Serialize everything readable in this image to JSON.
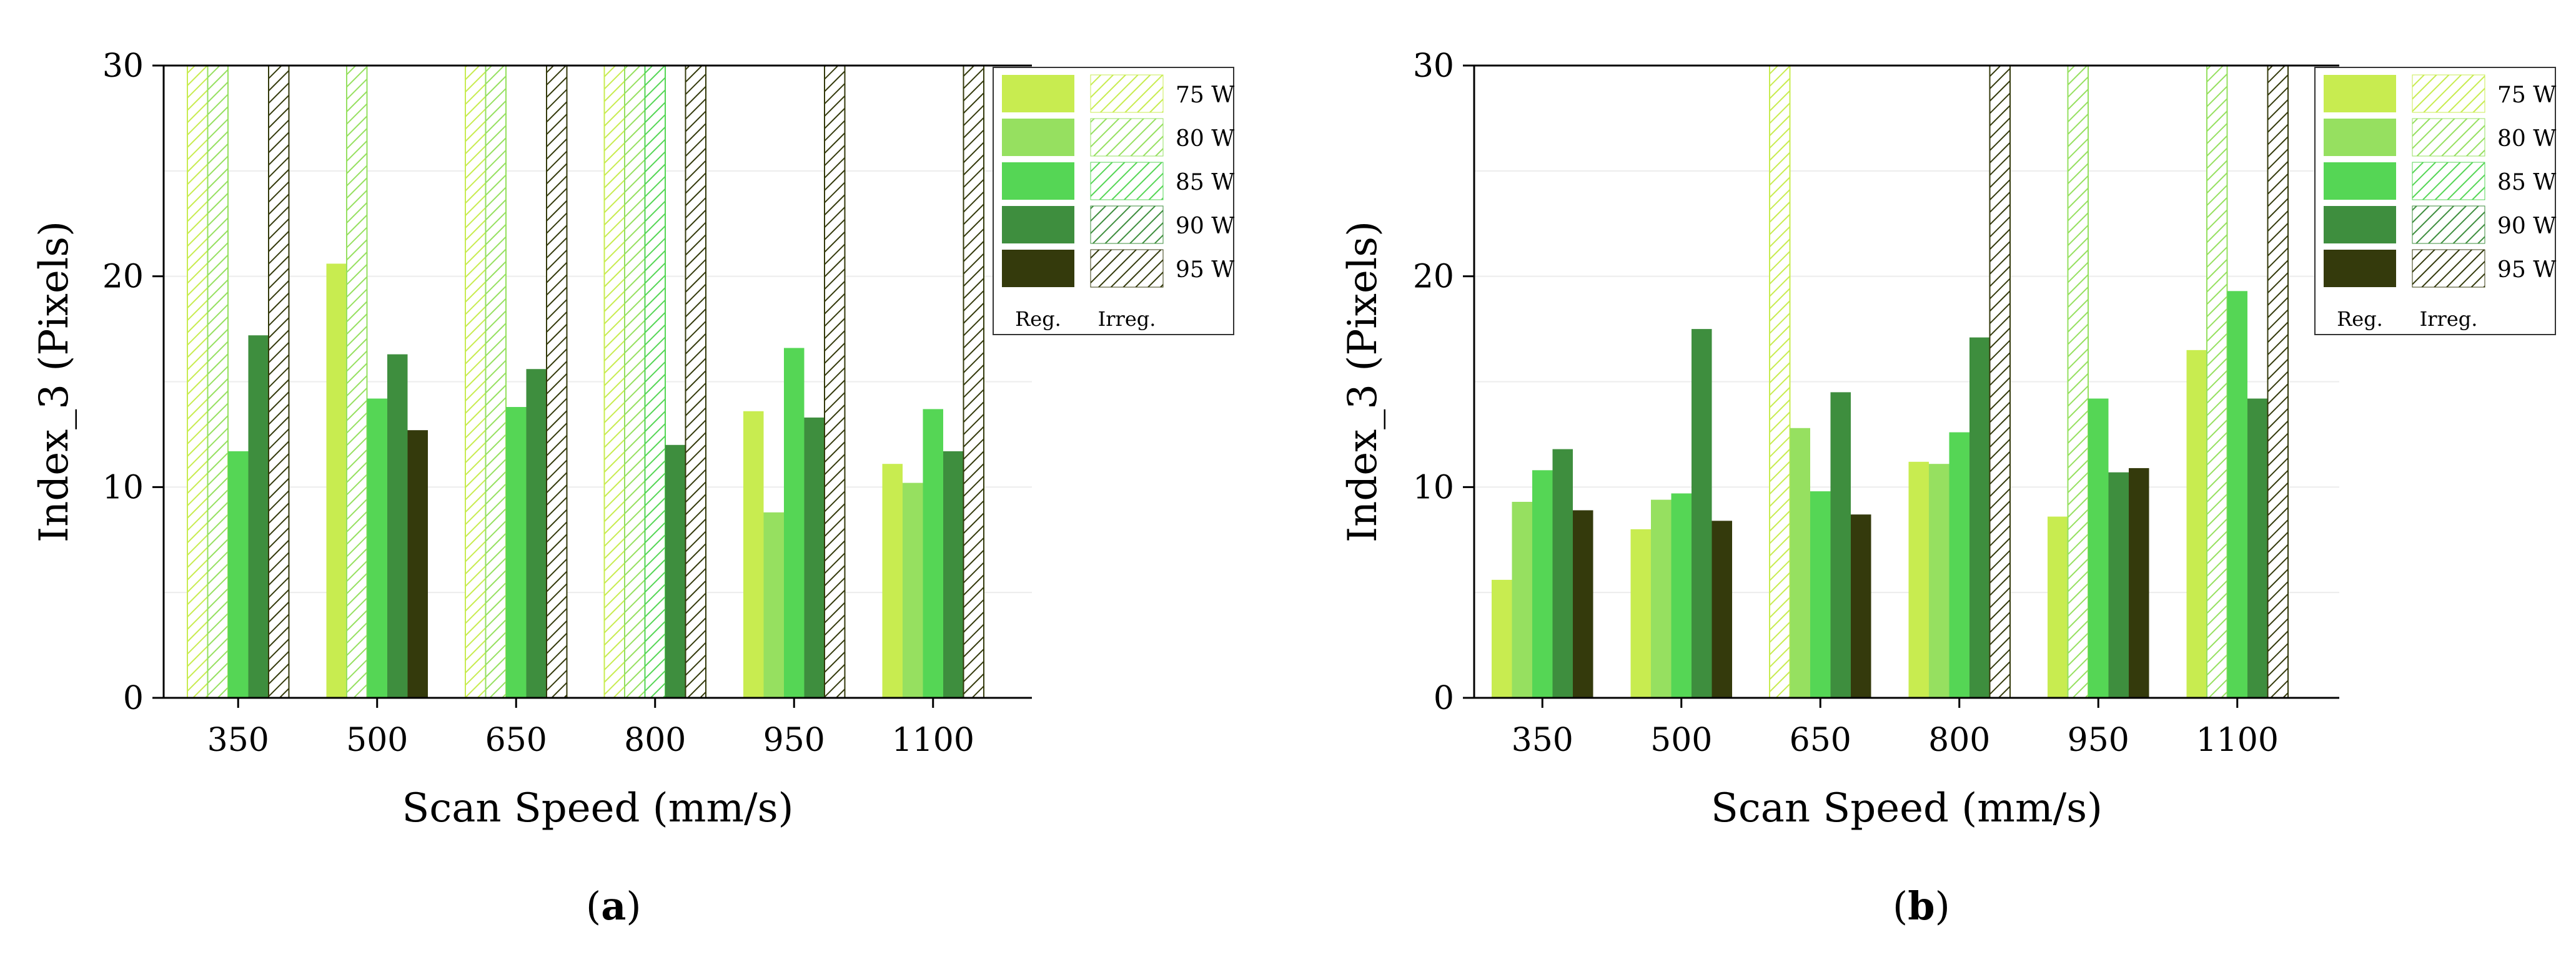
{
  "figure": {
    "panel_labels": [
      "a",
      "b"
    ]
  },
  "legend": {
    "entries": [
      "75 W",
      "80 W",
      "85 W",
      "90 W",
      "95 W"
    ],
    "regular_label": "Reg.",
    "irregular_label": "Irreg."
  },
  "colors": {
    "75 W": "#c8ec50",
    "80 W": "#96e060",
    "85 W": "#55d655",
    "90 W": "#3e8e3e",
    "95 W": "#343a0c",
    "axis": "#000000",
    "grid": "#ececec"
  },
  "chart_data": [
    {
      "type": "bar",
      "panel": "a",
      "title": "",
      "xlabel": "Scan Speed (mm/s)",
      "ylabel": "Index_3 (Pixels)",
      "categories": [
        "350",
        "500",
        "650",
        "800",
        "950",
        "1100"
      ],
      "ylim": [
        0,
        30
      ],
      "yticks": [
        0,
        10,
        20,
        30
      ],
      "grid": true,
      "legend_position": "top-right",
      "note": "null = irregular case drawn as hatched bar reaching the top of the axis",
      "series": [
        {
          "name": "75 W",
          "values": [
            null,
            20.6,
            null,
            null,
            13.6,
            11.1
          ]
        },
        {
          "name": "80 W",
          "values": [
            null,
            null,
            null,
            null,
            8.8,
            10.2
          ]
        },
        {
          "name": "85 W",
          "values": [
            11.7,
            14.2,
            13.8,
            null,
            16.6,
            13.7
          ]
        },
        {
          "name": "90 W",
          "values": [
            17.2,
            16.3,
            15.6,
            12.0,
            13.3,
            11.7
          ]
        },
        {
          "name": "95 W",
          "values": [
            null,
            12.7,
            null,
            null,
            null,
            null
          ]
        }
      ]
    },
    {
      "type": "bar",
      "panel": "b",
      "title": "",
      "xlabel": "Scan Speed (mm/s)",
      "ylabel": "Index_3 (Pixels)",
      "categories": [
        "350",
        "500",
        "650",
        "800",
        "950",
        "1100"
      ],
      "ylim": [
        0,
        30
      ],
      "yticks": [
        0,
        10,
        20,
        30
      ],
      "grid": true,
      "legend_position": "top-right",
      "note": "null = irregular case drawn as hatched bar reaching the top of the axis",
      "series": [
        {
          "name": "75 W",
          "values": [
            5.6,
            8.0,
            null,
            11.2,
            8.6,
            16.5
          ]
        },
        {
          "name": "80 W",
          "values": [
            9.3,
            9.4,
            12.8,
            11.1,
            null,
            null
          ]
        },
        {
          "name": "85 W",
          "values": [
            10.8,
            9.7,
            9.8,
            12.6,
            14.2,
            19.3
          ]
        },
        {
          "name": "90 W",
          "values": [
            11.8,
            17.5,
            14.5,
            17.1,
            10.7,
            14.2
          ]
        },
        {
          "name": "95 W",
          "values": [
            8.9,
            8.4,
            8.7,
            null,
            10.9,
            null
          ]
        }
      ]
    }
  ]
}
